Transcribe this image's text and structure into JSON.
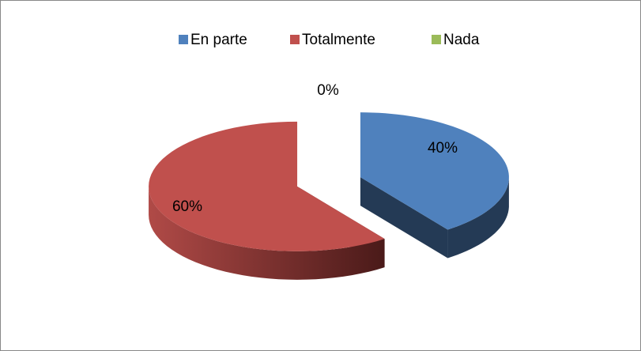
{
  "chart_data": {
    "type": "pie",
    "categories": [
      "En parte",
      "Totalmente",
      "Nada"
    ],
    "values": [
      40,
      60,
      0
    ],
    "value_labels": [
      "40%",
      "60%",
      "0%"
    ],
    "colors": [
      "#4f81bd",
      "#c0504d",
      "#9bbb59"
    ],
    "legend": "top"
  }
}
